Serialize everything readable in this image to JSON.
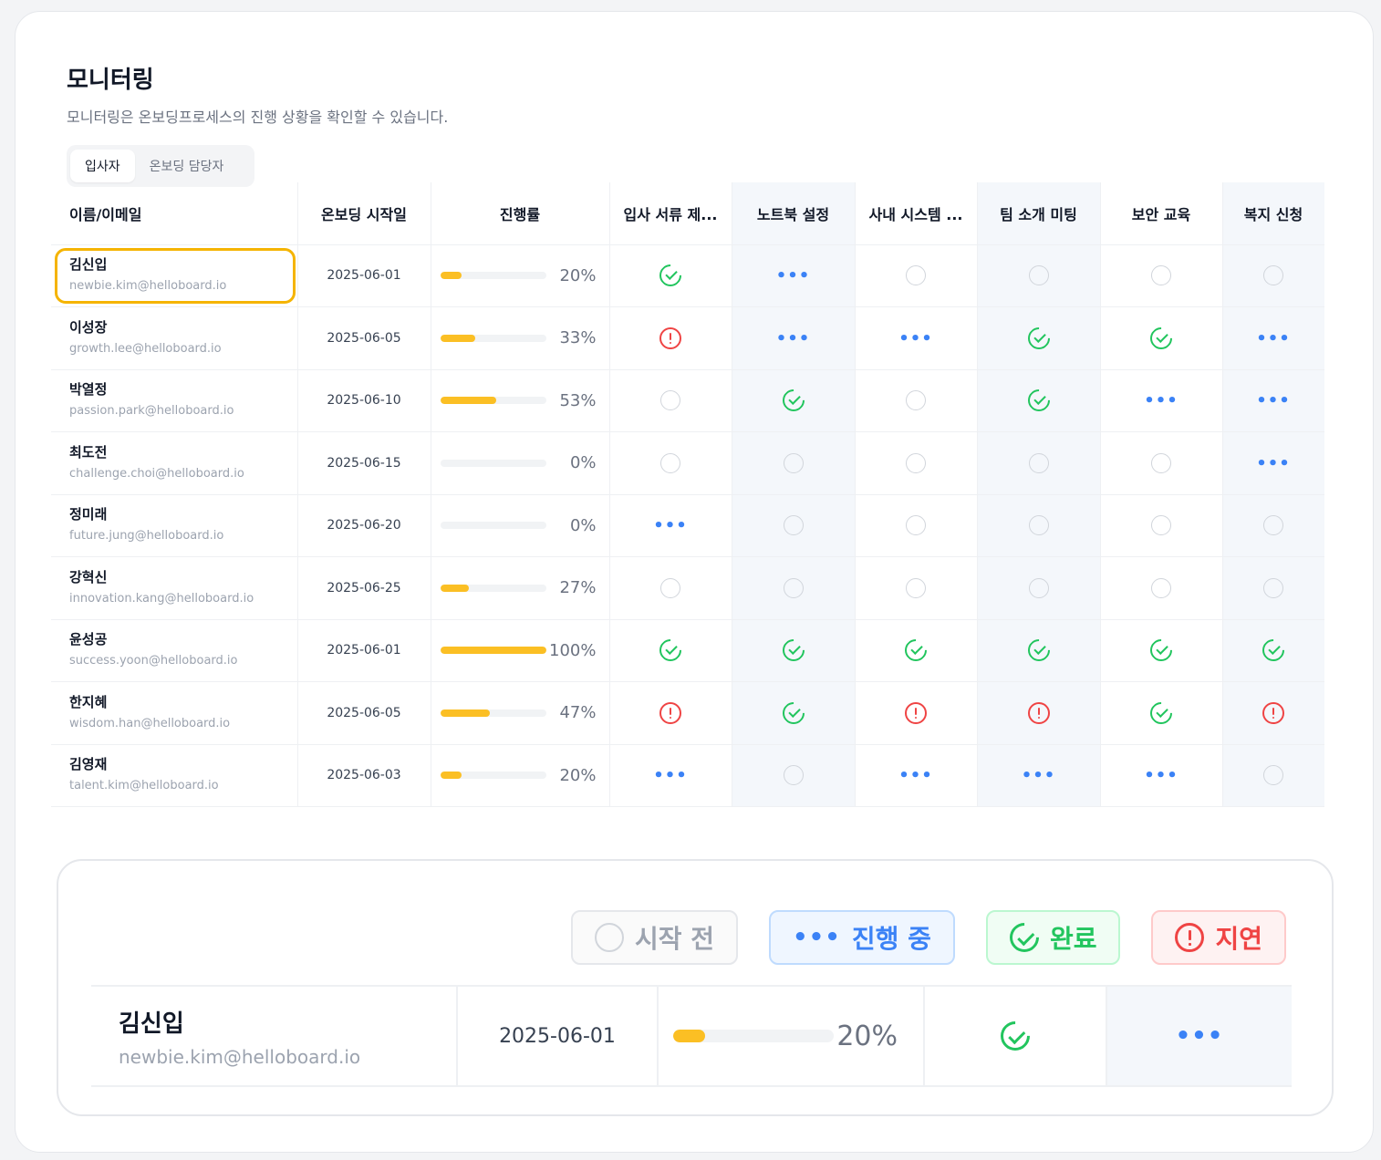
{
  "header": {
    "title": "모니터링",
    "description": "모니터링은 온보딩프로세스의 진행 상황을 확인할 수 있습니다."
  },
  "tabs": [
    {
      "label": "입사자",
      "active": true
    },
    {
      "label": "온보딩 담당자",
      "active": false
    }
  ],
  "table": {
    "columns": {
      "name": "이름/이메일",
      "start": "온보딩 시작일",
      "progress": "진행률",
      "tasks": [
        "입사 서류 제...",
        "노트북 설정",
        "사내 시스템 ...",
        "팀 소개 미팅",
        "보안 교육",
        "복지 신청"
      ]
    },
    "rows": [
      {
        "name": "김신입",
        "email": "newbie.kim@helloboard.io",
        "start": "2025-06-01",
        "progress": 20,
        "progress_label": "20%",
        "status": [
          "done",
          "in_progress",
          "pending",
          "pending",
          "pending",
          "pending"
        ],
        "selected": true
      },
      {
        "name": "이성장",
        "email": "growth.lee@helloboard.io",
        "start": "2025-06-05",
        "progress": 33,
        "progress_label": "33%",
        "status": [
          "late",
          "in_progress",
          "in_progress",
          "done",
          "done",
          "in_progress"
        ]
      },
      {
        "name": "박열정",
        "email": "passion.park@helloboard.io",
        "start": "2025-06-10",
        "progress": 53,
        "progress_label": "53%",
        "status": [
          "pending",
          "done",
          "pending",
          "done",
          "in_progress",
          "in_progress"
        ]
      },
      {
        "name": "최도전",
        "email": "challenge.choi@helloboard.io",
        "start": "2025-06-15",
        "progress": 0,
        "progress_label": "0%",
        "status": [
          "pending",
          "pending",
          "pending",
          "pending",
          "pending",
          "in_progress"
        ]
      },
      {
        "name": "정미래",
        "email": "future.jung@helloboard.io",
        "start": "2025-06-20",
        "progress": 0,
        "progress_label": "0%",
        "status": [
          "in_progress",
          "pending",
          "pending",
          "pending",
          "pending",
          "pending"
        ]
      },
      {
        "name": "강혁신",
        "email": "innovation.kang@helloboard.io",
        "start": "2025-06-25",
        "progress": 27,
        "progress_label": "27%",
        "status": [
          "pending",
          "pending",
          "pending",
          "pending",
          "pending",
          "pending"
        ]
      },
      {
        "name": "윤성공",
        "email": "success.yoon@helloboard.io",
        "start": "2025-06-01",
        "progress": 100,
        "progress_label": "100%",
        "status": [
          "done",
          "done",
          "done",
          "done",
          "done",
          "done"
        ]
      },
      {
        "name": "한지혜",
        "email": "wisdom.han@helloboard.io",
        "start": "2025-06-05",
        "progress": 47,
        "progress_label": "47%",
        "status": [
          "late",
          "done",
          "late",
          "late",
          "done",
          "late"
        ]
      },
      {
        "name": "김영재",
        "email": "talent.kim@helloboard.io",
        "start": "2025-06-03",
        "progress": 20,
        "progress_label": "20%",
        "status": [
          "in_progress",
          "pending",
          "in_progress",
          "in_progress",
          "in_progress",
          "pending"
        ]
      }
    ]
  },
  "legend": {
    "pending": "시작 전",
    "in_progress": "진행 중",
    "done": "완료",
    "late": "지연"
  },
  "zoom_row": {
    "name": "김신입",
    "email": "newbie.kim@helloboard.io",
    "start": "2025-06-01",
    "progress": 20,
    "progress_label": "20%",
    "status": [
      "done",
      "in_progress"
    ]
  },
  "colors": {
    "accent": "#fbbf24",
    "done": "#22c55e",
    "in_progress": "#3b82f6",
    "late": "#ef4444",
    "pending": "#d1d5db",
    "highlight": "#f5b400"
  },
  "icons": {
    "pending": "empty-circle-icon",
    "in_progress": "ellipsis-icon",
    "done": "check-circle-icon",
    "late": "alert-circle-icon"
  }
}
